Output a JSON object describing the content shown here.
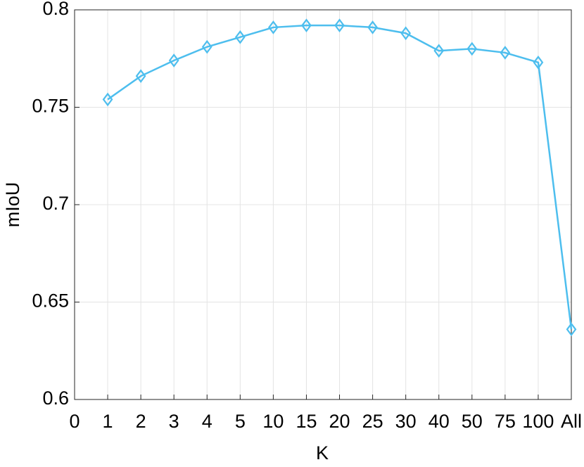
{
  "chart_data": {
    "type": "line",
    "x_label": "K",
    "y_label": "mIoU",
    "categories": [
      "0",
      "1",
      "2",
      "3",
      "4",
      "5",
      "10",
      "15",
      "20",
      "25",
      "30",
      "40",
      "50",
      "75",
      "100",
      "All"
    ],
    "values": [
      null,
      0.754,
      0.766,
      0.774,
      0.781,
      0.786,
      0.791,
      0.792,
      0.792,
      0.791,
      0.788,
      0.779,
      0.78,
      0.778,
      0.773,
      0.636
    ],
    "color": "#4dbeee",
    "ylim": [
      0.6,
      0.8
    ],
    "yticks": [
      0.6,
      0.65,
      0.7,
      0.75,
      0.8
    ],
    "grid": true
  }
}
